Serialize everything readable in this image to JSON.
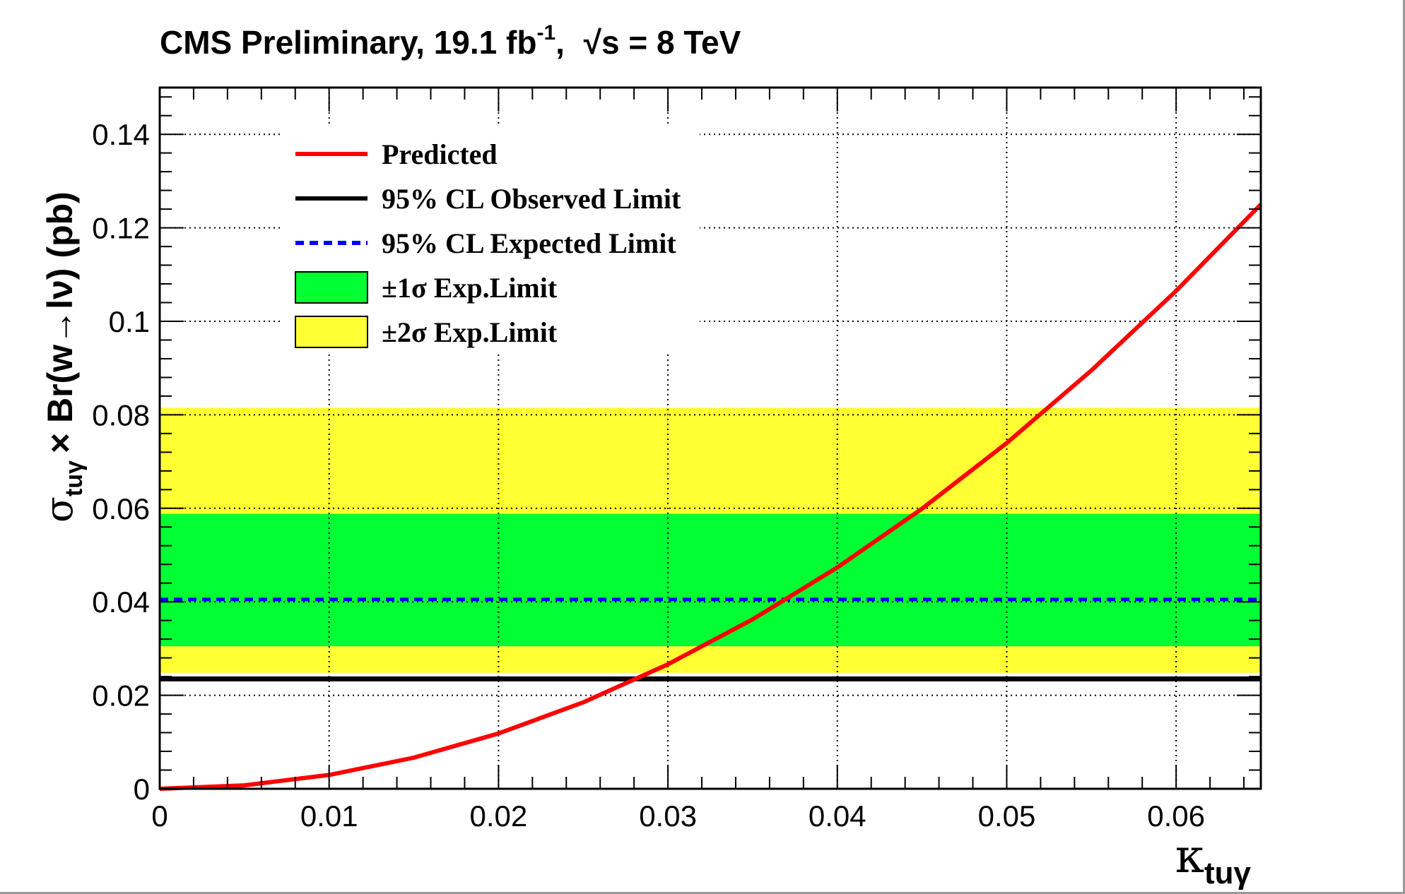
{
  "chart_data": {
    "type": "line",
    "title": "CMS Preliminary, 19.1 fb",
    "title_superscript": "-1",
    "title_energy_sqrt": "√",
    "title_energy": "s = 8 TeV",
    "xlabel_symbol": "κ",
    "xlabel_subscript": "tuγ",
    "ylabel_sigma": "σ",
    "ylabel_sigma_subscript": "tuγ",
    "ylabel_rest": "× Br(w→lν) (pb)",
    "xlim": [
      0,
      0.065
    ],
    "ylim": [
      0,
      0.15
    ],
    "x_ticks": [
      0,
      0.01,
      0.02,
      0.03,
      0.04,
      0.05,
      0.06
    ],
    "x_tick_labels": [
      "0",
      "0.01",
      "0.02",
      "0.03",
      "0.04",
      "0.05",
      "0.06"
    ],
    "y_ticks": [
      0,
      0.02,
      0.04,
      0.06,
      0.08,
      0.1,
      0.12,
      0.14
    ],
    "y_tick_labels": [
      "0",
      "0.02",
      "0.04",
      "0.06",
      "0.08",
      "0.1",
      "0.12",
      "0.14"
    ],
    "grid": true,
    "legend_position": "top-left",
    "series": [
      {
        "name": "Predicted",
        "color": "#ff0000",
        "style": "solid",
        "x": [
          0,
          0.005,
          0.01,
          0.015,
          0.02,
          0.025,
          0.03,
          0.035,
          0.04,
          0.045,
          0.05,
          0.055,
          0.06,
          0.065
        ],
        "y": [
          0,
          0.00074,
          0.00296,
          0.00666,
          0.01183,
          0.01849,
          0.02663,
          0.03624,
          0.04734,
          0.05991,
          0.07396,
          0.0895,
          0.10651,
          0.125
        ]
      },
      {
        "name": "95% CL Observed Limit",
        "color": "#000000",
        "style": "solid",
        "y_const": 0.0235
      },
      {
        "name": "95% CL Expected Limit",
        "color": "#0000ff",
        "style": "dashed",
        "y_const": 0.0405
      }
    ],
    "bands": [
      {
        "name": "±1σ Exp.Limit",
        "color": "#00ff33",
        "y_low": 0.0305,
        "y_high": 0.0588
      },
      {
        "name": "±2σ Exp.Limit",
        "color": "#ffff33",
        "y_low": 0.0248,
        "y_high": 0.0815
      }
    ]
  }
}
